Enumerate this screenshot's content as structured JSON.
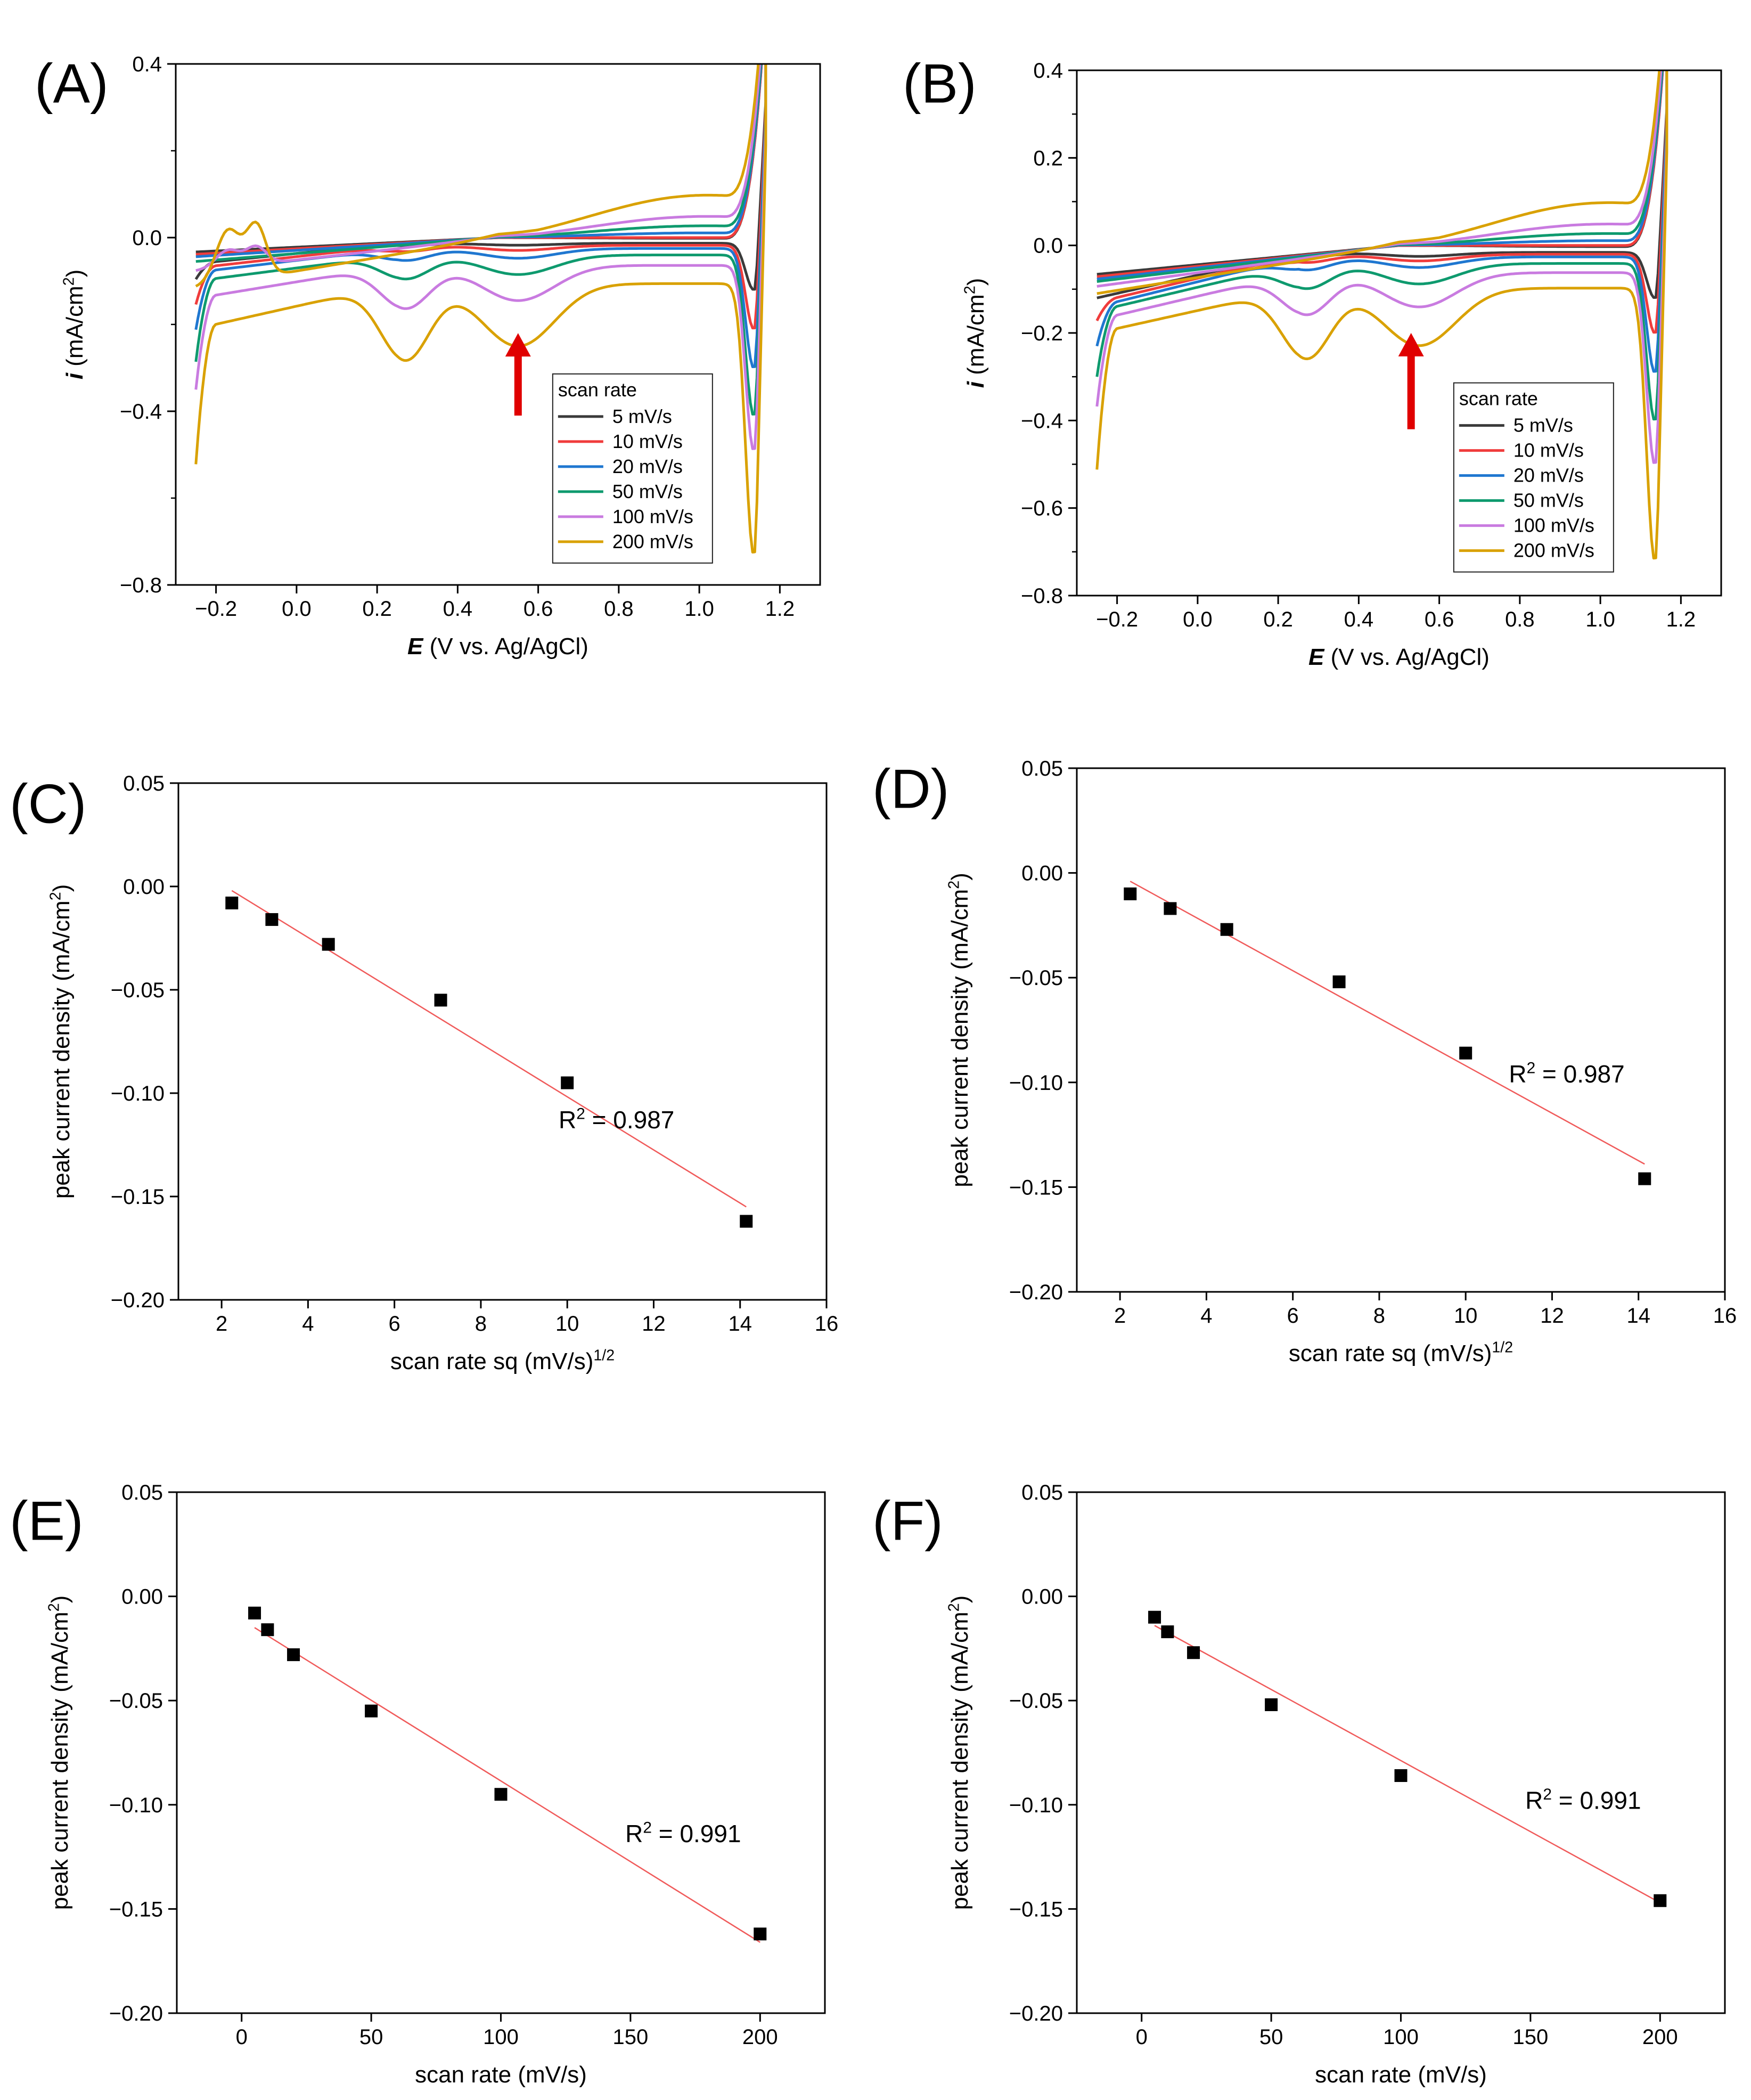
{
  "colors": {
    "s5": "#3a3a3a",
    "s10": "#f03c3c",
    "s20": "#1f77d0",
    "s50": "#0e9a6e",
    "s100": "#c97be0",
    "s200": "#d9a100",
    "fit": "#f05a5a",
    "arrow": "#e00000",
    "marker": "#000000"
  },
  "chart_data": [
    {
      "panel": "(A)",
      "type": "line",
      "xlabel_bold": "E",
      "xlabel_rest": " (V vs. Ag/AgCl)",
      "ylabel_bold": "i",
      "ylabel_rest": " (mA/cm",
      "ylabel_sup": "2",
      "ylabel_end": ")",
      "xlim": [
        -0.3,
        1.3
      ],
      "ylim": [
        -0.8,
        0.4
      ],
      "xticks": [
        -0.2,
        0.0,
        0.2,
        0.4,
        0.6,
        0.8,
        1.0,
        1.2
      ],
      "xtick_labels": [
        "−0.2",
        "0.0",
        "0.2",
        "0.4",
        "0.6",
        "0.8",
        "1.0",
        "1.2"
      ],
      "yticks": [
        -0.8,
        -0.4,
        0.0,
        0.4
      ],
      "ytick_labels": [
        "−0.8",
        "−0.4",
        "0.0",
        "0.4"
      ],
      "legend_title": "scan rate",
      "arrow_at": {
        "x": 0.55,
        "y_from": -0.41,
        "y_to": -0.22
      },
      "series": [
        {
          "name": "5 mV/s",
          "color_key": "s5",
          "cath": -0.005,
          "ano": -0.003,
          "v1": -0.06,
          "v2": -0.12,
          "vmin": -0.12
        },
        {
          "name": "10 mV/s",
          "color_key": "s10",
          "cath": -0.013,
          "ano": 0.0,
          "v1": -0.07,
          "v2": -0.18,
          "vmin": -0.21
        },
        {
          "name": "20 mV/s",
          "color_key": "s20",
          "cath": -0.025,
          "ano": 0.02,
          "v1": -0.08,
          "v2": -0.26,
          "vmin": -0.3
        },
        {
          "name": "50 mV/s",
          "color_key": "s50",
          "cath": -0.05,
          "ano": 0.05,
          "v1": -0.1,
          "v2": -0.36,
          "vmin": -0.41
        },
        {
          "name": "100 mV/s",
          "color_key": "s100",
          "cath": -0.09,
          "ano": 0.09,
          "v1": -0.14,
          "v2": -0.44,
          "vmin": -0.49
        },
        {
          "name": "200 mV/s",
          "color_key": "s200",
          "cath": -0.16,
          "ano": 0.18,
          "v1": -0.21,
          "v2": -0.52,
          "vmin": -0.73
        }
      ]
    },
    {
      "panel": "(B)",
      "type": "line",
      "xlabel_bold": "E",
      "xlabel_rest": " (V vs. Ag/AgCl)",
      "ylabel_bold": "i",
      "ylabel_rest": " (mA/cm",
      "ylabel_sup": "2",
      "ylabel_end": ")",
      "xlim": [
        -0.3,
        1.3
      ],
      "ylim": [
        -0.8,
        0.4
      ],
      "xticks": [
        -0.2,
        0.0,
        0.2,
        0.4,
        0.6,
        0.8,
        1.0,
        1.2
      ],
      "xtick_labels": [
        "−0.2",
        "0.0",
        "0.2",
        "0.4",
        "0.6",
        "0.8",
        "1.0",
        "1.2"
      ],
      "yticks": [
        -0.8,
        -0.6,
        -0.4,
        -0.2,
        0.0,
        0.2,
        0.4
      ],
      "ytick_labels": [
        "−0.8",
        "−0.6",
        "−0.4",
        "−0.2",
        "0.0",
        "0.2",
        "0.4"
      ],
      "legend_title": "scan rate",
      "arrow_at": {
        "x": 0.53,
        "y_from": -0.42,
        "y_to": -0.2
      },
      "series": [
        {
          "name": "5 mV/s",
          "color_key": "s5",
          "cath": -0.01,
          "ano": -0.005,
          "v1": -0.12,
          "v2": -0.12,
          "vmin": -0.12
        },
        {
          "name": "10 mV/s",
          "color_key": "s10",
          "cath": -0.017,
          "ano": 0.0,
          "v1": -0.13,
          "v2": -0.18,
          "vmin": -0.2
        },
        {
          "name": "20 mV/s",
          "color_key": "s20",
          "cath": -0.027,
          "ano": 0.02,
          "v1": -0.14,
          "v2": -0.26,
          "vmin": -0.29
        },
        {
          "name": "50 mV/s",
          "color_key": "s50",
          "cath": -0.052,
          "ano": 0.05,
          "v1": -0.15,
          "v2": -0.36,
          "vmin": -0.4
        },
        {
          "name": "100 mV/s",
          "color_key": "s100",
          "cath": -0.087,
          "ano": 0.09,
          "v1": -0.17,
          "v2": -0.45,
          "vmin": -0.5
        },
        {
          "name": "200 mV/s",
          "color_key": "s200",
          "cath": -0.146,
          "ano": 0.18,
          "v1": -0.2,
          "v2": -0.53,
          "vmin": -0.72
        }
      ]
    },
    {
      "panel": "(C)",
      "type": "scatter",
      "xlabel": "scan rate sq (mV/s)",
      "xlabel_sup": "1/2",
      "ylabel": "peak current density (mA/cm",
      "ylabel_sup": "2",
      "ylabel_end": ")",
      "xlim": [
        1,
        16
      ],
      "ylim": [
        -0.2,
        0.05
      ],
      "xticks": [
        2,
        4,
        6,
        8,
        10,
        12,
        14,
        16
      ],
      "xtick_labels": [
        "2",
        "4",
        "6",
        "8",
        "10",
        "12",
        "14",
        "16"
      ],
      "yticks": [
        -0.2,
        -0.15,
        -0.1,
        -0.05,
        0.0,
        0.05
      ],
      "ytick_labels": [
        "−0.20",
        "−0.15",
        "−0.10",
        "−0.05",
        "0.00",
        "0.05"
      ],
      "x": [
        2.236,
        3.162,
        4.472,
        7.071,
        10.0,
        14.142
      ],
      "y": [
        -0.008,
        -0.016,
        -0.028,
        -0.055,
        -0.095,
        -0.162
      ],
      "fit": {
        "x0": 2.236,
        "y0": -0.002,
        "x1": 14.142,
        "y1": -0.155
      },
      "r2_prefix": "R",
      "r2_sup": "2",
      "r2_value": " = 0.987",
      "r2_at": {
        "x": 9.8,
        "y": -0.117
      }
    },
    {
      "panel": "(D)",
      "type": "scatter",
      "xlabel": "scan rate sq (mV/s)",
      "xlabel_sup": "1/2",
      "ylabel": "peak current density (mA/cm",
      "ylabel_sup": "2",
      "ylabel_end": ")",
      "xlim": [
        1,
        16
      ],
      "ylim": [
        -0.2,
        0.05
      ],
      "xticks": [
        2,
        4,
        6,
        8,
        10,
        12,
        14,
        16
      ],
      "xtick_labels": [
        "2",
        "4",
        "6",
        "8",
        "10",
        "12",
        "14",
        "16"
      ],
      "yticks": [
        -0.2,
        -0.15,
        -0.1,
        -0.05,
        0.0,
        0.05
      ],
      "ytick_labels": [
        "−0.20",
        "−0.15",
        "−0.10",
        "−0.05",
        "0.00",
        "0.05"
      ],
      "x": [
        2.236,
        3.162,
        4.472,
        7.071,
        10.0,
        14.142
      ],
      "y": [
        -0.01,
        -0.017,
        -0.027,
        -0.052,
        -0.086,
        -0.146
      ],
      "fit": {
        "x0": 2.236,
        "y0": -0.004,
        "x1": 14.142,
        "y1": -0.139
      },
      "r2_prefix": "R",
      "r2_sup": "2",
      "r2_value": " = 0.987",
      "r2_at": {
        "x": 11.0,
        "y": -0.1
      }
    },
    {
      "panel": "(E)",
      "type": "scatter",
      "xlabel": "scan rate (mV/s)",
      "ylabel": "peak current density (mA/cm",
      "ylabel_sup": "2",
      "ylabel_end": ")",
      "xlim": [
        -25,
        225
      ],
      "ylim": [
        -0.2,
        0.05
      ],
      "xticks": [
        0,
        50,
        100,
        150,
        200
      ],
      "xtick_labels": [
        "0",
        "50",
        "100",
        "150",
        "200"
      ],
      "yticks": [
        -0.2,
        -0.15,
        -0.1,
        -0.05,
        0.0,
        0.05
      ],
      "ytick_labels": [
        "−0.20",
        "−0.15",
        "−0.10",
        "−0.05",
        "0.00",
        "0.05"
      ],
      "x": [
        5,
        10,
        20,
        50,
        100,
        200
      ],
      "y": [
        -0.008,
        -0.016,
        -0.028,
        -0.055,
        -0.095,
        -0.162
      ],
      "fit": {
        "x0": 5,
        "y0": -0.015,
        "x1": 200,
        "y1": -0.166
      },
      "r2_prefix": "R",
      "r2_sup": "2",
      "r2_value": " = 0.991",
      "r2_at": {
        "x": 148,
        "y": -0.118
      }
    },
    {
      "panel": "(F)",
      "type": "scatter",
      "xlabel": "scan rate (mV/s)",
      "ylabel": "peak current density (mA/cm",
      "ylabel_sup": "2",
      "ylabel_end": ")",
      "xlim": [
        -25,
        225
      ],
      "ylim": [
        -0.2,
        0.05
      ],
      "xticks": [
        0,
        50,
        100,
        150,
        200
      ],
      "xtick_labels": [
        "0",
        "50",
        "100",
        "150",
        "200"
      ],
      "yticks": [
        -0.2,
        -0.15,
        -0.1,
        -0.05,
        0.0,
        0.05
      ],
      "ytick_labels": [
        "−0.20",
        "−0.15",
        "−0.10",
        "−0.05",
        "0.00",
        "0.05"
      ],
      "x": [
        5,
        10,
        20,
        50,
        100,
        200
      ],
      "y": [
        -0.01,
        -0.017,
        -0.027,
        -0.052,
        -0.086,
        -0.146
      ],
      "fit": {
        "x0": 5,
        "y0": -0.014,
        "x1": 200,
        "y1": -0.147
      },
      "r2_prefix": "R",
      "r2_sup": "2",
      "r2_value": " = 0.991",
      "r2_at": {
        "x": 148,
        "y": -0.102
      }
    }
  ]
}
